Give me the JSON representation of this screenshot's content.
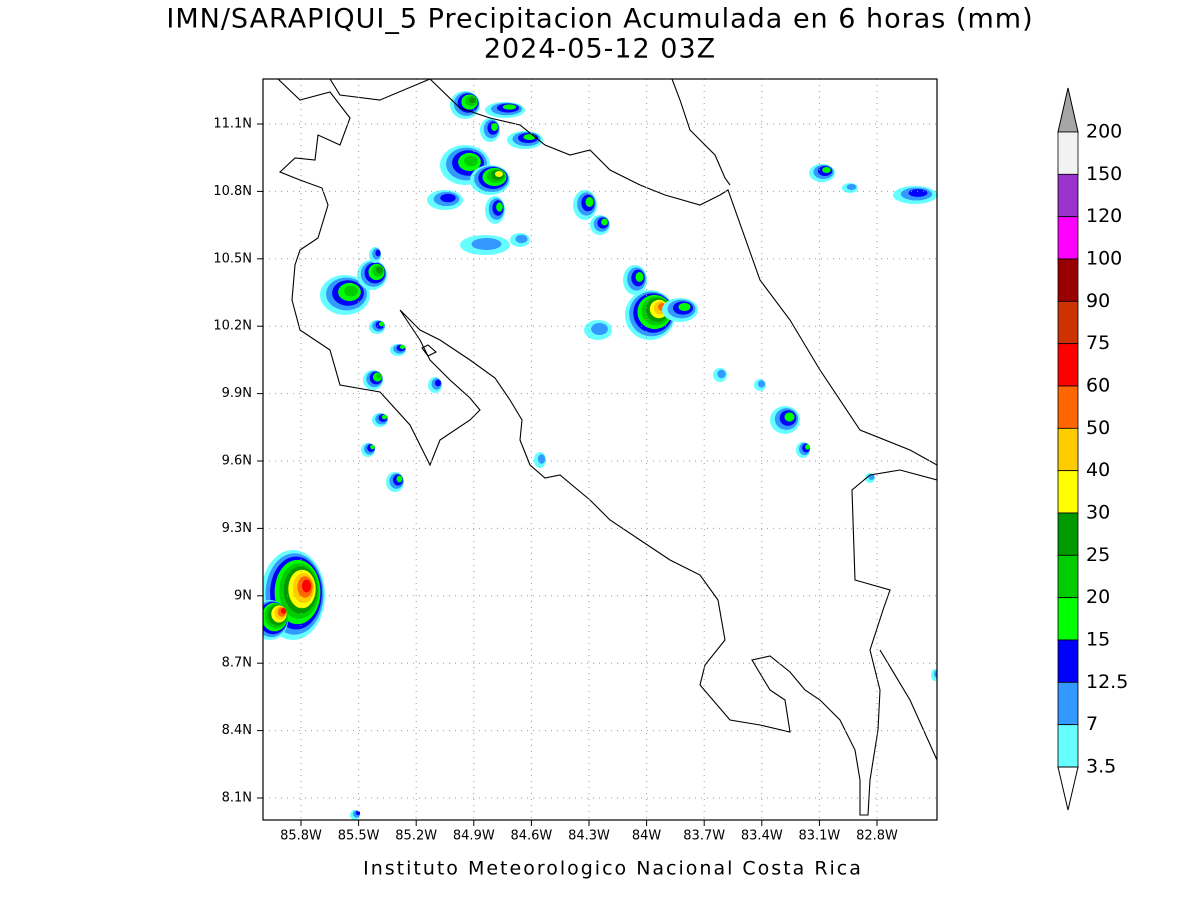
{
  "header": {
    "title": "IMN/SARAPIQUI_5 Precipitacion Acumulada en 6 horas (mm)",
    "subtitle": "2024-05-12 03Z"
  },
  "map": {
    "lat_labels": [
      "11.1N",
      "10.8N",
      "10.5N",
      "10.2N",
      "9.9N",
      "9.6N",
      "9.3N",
      "9N",
      "8.7N",
      "8.4N",
      "8.1N"
    ],
    "lon_labels": [
      "85.8W",
      "85.5W",
      "85.2W",
      "84.9W",
      "84.6W",
      "84.3W",
      "84W",
      "83.7W",
      "83.4W",
      "83.1W",
      "82.8W"
    ]
  },
  "colorbar": {
    "labels": [
      200,
      150,
      120,
      100,
      90,
      75,
      60,
      50,
      40,
      30,
      25,
      20,
      15,
      12.5,
      7,
      3.5
    ],
    "colors": [
      "#f2f2f2",
      "#9933cc",
      "#ff00ff",
      "#990000",
      "#cc3300",
      "#ff0000",
      "#ff6600",
      "#ffcc00",
      "#ffff00",
      "#009900",
      "#00cc00",
      "#00ff00",
      "#0000ff",
      "#3399ff",
      "#66ffff"
    ],
    "over_color": "#a6a6a6",
    "under_color": "#ffffff"
  },
  "footer": "Instituto Meteorologico Nacional Costa Rica"
}
